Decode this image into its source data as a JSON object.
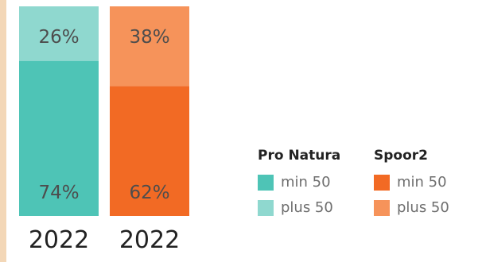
{
  "chart_data": {
    "type": "bar",
    "stacked": true,
    "normalized_percent": true,
    "categories": [
      "2022",
      "2022"
    ],
    "groups": [
      {
        "legend_title": "Pro Natura",
        "segments": [
          {
            "name": "min 50",
            "value": 74,
            "label": "74%",
            "color": "#4ec4b6"
          },
          {
            "name": "plus 50",
            "value": 26,
            "label": "26%",
            "color": "#8fd8cf"
          }
        ]
      },
      {
        "legend_title": "Spoor2",
        "segments": [
          {
            "name": "min 50",
            "value": 62,
            "label": "62%",
            "color": "#f26a24"
          },
          {
            "name": "plus 50",
            "value": 38,
            "label": "38%",
            "color": "#f6935a"
          }
        ]
      }
    ],
    "title": "",
    "xlabel": "",
    "ylabel": "",
    "ylim": [
      0,
      100
    ],
    "grid": false,
    "legend_placement": "right"
  },
  "colors": {
    "background": "#ffffff",
    "left_stripe": "#f3d7b7"
  }
}
